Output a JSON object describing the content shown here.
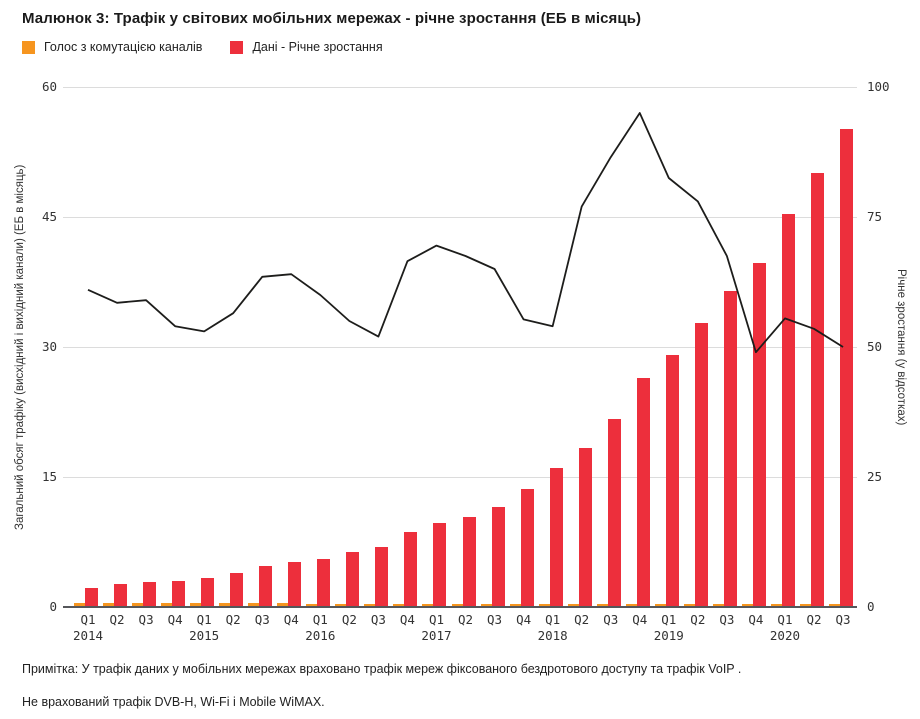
{
  "title": "Малюнок 3: Трафік у світових мобільних мережах - річне зростання (ЕБ в місяць)",
  "legend": {
    "items": [
      {
        "label": "Голос з комутацією каналів",
        "color": "#F6951F"
      },
      {
        "label": "Дані - Річне зростання",
        "color": "#ED2F3C"
      }
    ]
  },
  "notes": {
    "line1": "Примітка: У трафік даних у мобільних мережах враховано трафік мереж фіксованого бездротового доступу та трафік VoIP .",
    "line2": "Не врахований трафік DVB-H, Wi-Fi і Mobile WiMAX."
  },
  "chart_data": {
    "type": "bar",
    "title": "Трафік у світових мобільних мережах - річне зростання (ЕБ в місяць)",
    "categories": [
      "Q1",
      "Q2",
      "Q3",
      "Q4",
      "Q1",
      "Q2",
      "Q3",
      "Q4",
      "Q1",
      "Q2",
      "Q3",
      "Q4",
      "Q1",
      "Q2",
      "Q3",
      "Q4",
      "Q1",
      "Q2",
      "Q3",
      "Q4",
      "Q1",
      "Q2",
      "Q3",
      "Q4",
      "Q1",
      "Q2",
      "Q3"
    ],
    "years": [
      {
        "label": "2014",
        "quarter_index": 0
      },
      {
        "label": "2015",
        "quarter_index": 4
      },
      {
        "label": "2016",
        "quarter_index": 8
      },
      {
        "label": "2017",
        "quarter_index": 12
      },
      {
        "label": "2018",
        "quarter_index": 16
      },
      {
        "label": "2019",
        "quarter_index": 20
      },
      {
        "label": "2020",
        "quarter_index": 24
      }
    ],
    "left_axis": {
      "label": "Загальний обсяг трафіку (висхідний і вихідний канали) (ЕБ в місяць)",
      "ticks": [
        0,
        15,
        30,
        45,
        60
      ],
      "range": [
        0,
        60
      ]
    },
    "right_axis": {
      "label": "Річне зростання (у відсотках)",
      "ticks": [
        0,
        25,
        50,
        75,
        100
      ],
      "range": [
        0,
        100
      ]
    },
    "grid": true,
    "legend_position": "top-left",
    "series": [
      {
        "name": "Голос з комутацією каналів",
        "type": "bar",
        "axis": "left",
        "color": "#F6951F",
        "values": [
          0.45,
          0.45,
          0.45,
          0.45,
          0.45,
          0.45,
          0.45,
          0.45,
          0.4,
          0.4,
          0.4,
          0.4,
          0.4,
          0.4,
          0.4,
          0.4,
          0.4,
          0.4,
          0.4,
          0.4,
          0.35,
          0.35,
          0.35,
          0.35,
          0.35,
          0.35,
          0.35
        ]
      },
      {
        "name": "Дані",
        "type": "bar",
        "axis": "left",
        "color": "#ED2F3C",
        "values": [
          2.2,
          2.7,
          2.9,
          3.0,
          3.3,
          3.9,
          4.7,
          5.2,
          5.5,
          6.3,
          6.9,
          8.6,
          9.7,
          10.4,
          11.5,
          13.6,
          16.0,
          18.3,
          21.7,
          26.4,
          29.1,
          32.8,
          36.5,
          39.7,
          45.4,
          50.1,
          55.1
        ]
      },
      {
        "name": "Річне зростання",
        "type": "line",
        "axis": "right",
        "color": "#1D1D1B",
        "values": [
          61,
          58.5,
          59,
          54,
          53,
          56.5,
          63.5,
          64,
          60,
          55,
          52,
          66.5,
          69.5,
          67.5,
          65,
          55.3,
          54,
          77,
          86.5,
          95,
          82.5,
          78,
          67.5,
          49,
          55.5,
          53.5,
          50
        ]
      }
    ]
  }
}
